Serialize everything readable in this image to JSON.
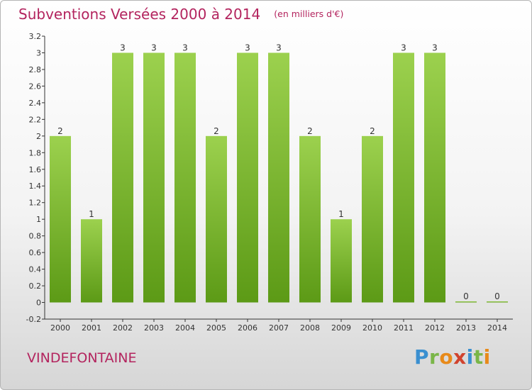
{
  "header": {
    "title": "Subventions Versées 2000 à 2014",
    "unit": "(en milliers d'€)"
  },
  "footer": {
    "commune": "VINDEFONTAINE",
    "brand": "Proxiti"
  },
  "colors": {
    "accent": "#b3245e",
    "bar_light": "#9cd14e",
    "bar_dark": "#5c9a16",
    "axis": "#333333"
  },
  "chart_data": {
    "type": "bar",
    "title": "Subventions Versées 2000 à 2014",
    "subtitle": "(en milliers d'€)",
    "xlabel": "",
    "ylabel": "",
    "categories": [
      "2000",
      "2001",
      "2002",
      "2003",
      "2004",
      "2005",
      "2006",
      "2007",
      "2008",
      "2009",
      "2010",
      "2011",
      "2012",
      "2013",
      "2014"
    ],
    "values": [
      2,
      1,
      3,
      3,
      3,
      2,
      3,
      3,
      2,
      1,
      2,
      3,
      3,
      0,
      0
    ],
    "data_labels": [
      "2",
      "1",
      "3",
      "3",
      "3",
      "2",
      "3",
      "3",
      "2",
      "1",
      "2",
      "3",
      "3",
      "0",
      "0"
    ],
    "ylim": [
      -0.2,
      3.2
    ],
    "yticks": [
      "-0.2",
      "0",
      "0.2",
      "0.4",
      "0.6",
      "0.8",
      "1",
      "1.2",
      "1.4",
      "1.6",
      "1.8",
      "2",
      "2.2",
      "2.4",
      "2.6",
      "2.8",
      "3",
      "3.2"
    ],
    "grid": false,
    "legend": "none"
  }
}
